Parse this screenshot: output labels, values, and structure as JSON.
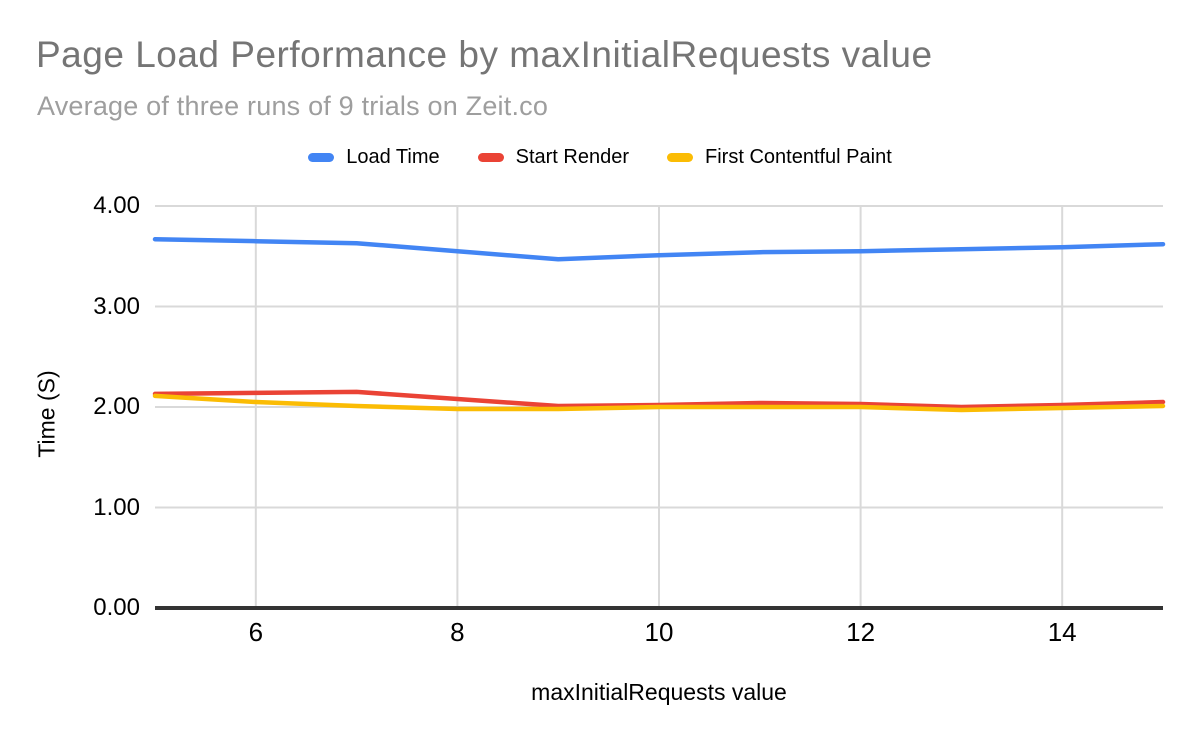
{
  "chart_data": {
    "type": "line",
    "title": "Page Load Performance by maxInitialRequests value",
    "subtitle": "Average of three runs of 9 trials on Zeit.co",
    "xlabel": "maxInitialRequests value",
    "ylabel": "Time (S)",
    "x": [
      5,
      6,
      7,
      8,
      9,
      10,
      11,
      12,
      13,
      14,
      15
    ],
    "series": [
      {
        "name": "Load Time",
        "color": "#4285f4",
        "values": [
          3.67,
          3.65,
          3.63,
          3.55,
          3.47,
          3.51,
          3.54,
          3.55,
          3.57,
          3.59,
          3.62
        ]
      },
      {
        "name": "Start Render",
        "color": "#ea4335",
        "values": [
          2.13,
          2.14,
          2.15,
          2.08,
          2.01,
          2.02,
          2.04,
          2.03,
          2.0,
          2.02,
          2.05
        ]
      },
      {
        "name": "First Contentful Paint",
        "color": "#fbbc04",
        "values": [
          2.11,
          2.05,
          2.01,
          1.98,
          1.98,
          2.0,
          2.0,
          2.0,
          1.97,
          1.99,
          2.01
        ]
      }
    ],
    "xlim": [
      5,
      15
    ],
    "ylim": [
      0,
      4
    ],
    "xticks": [
      6,
      8,
      10,
      12,
      14
    ],
    "yticks": [
      0,
      1,
      2,
      3,
      4
    ],
    "ytick_labels": [
      "0.00",
      "1.00",
      "2.00",
      "3.00",
      "4.00"
    ],
    "grid": true,
    "legend_position": "top"
  },
  "style": {
    "title_color": "#757575",
    "subtitle_color": "#9e9e9e",
    "gridline_color": "#d9d9d9",
    "axis_line_color": "#333333",
    "tick_label_color": "#000000",
    "legend_text_color": "#000000",
    "background": "#ffffff"
  }
}
